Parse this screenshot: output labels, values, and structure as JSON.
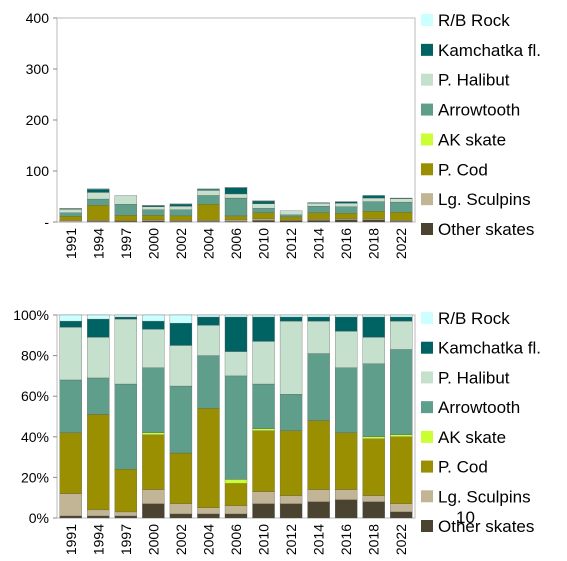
{
  "chart_data": [
    {
      "type": "stacked_bar",
      "categories": [
        "1991",
        "1994",
        "1997",
        "2000",
        "2002",
        "2004",
        "2006",
        "2010",
        "2012",
        "2014",
        "2016",
        "2018",
        "2022"
      ],
      "ylim": [
        0,
        400
      ],
      "yticks": [
        {
          "value": 0,
          "label": "-"
        },
        100,
        200,
        300,
        400
      ],
      "legend": "right",
      "series": [
        {
          "name": "Other skates",
          "color": "#4a4330",
          "values": [
            0,
            1,
            1,
            2,
            1,
            1,
            1,
            3,
            2,
            3,
            4,
            4,
            1
          ]
        },
        {
          "name": "Lg. Sculpins",
          "color": "#c1b595",
          "values": [
            3,
            2,
            1,
            2,
            2,
            2,
            3,
            3,
            1,
            2,
            2,
            2,
            2
          ]
        },
        {
          "name": "P. Cod",
          "color": "#9a8f00",
          "values": [
            8,
            30,
            11,
            9,
            9,
            32,
            7,
            12,
            7,
            13,
            11,
            15,
            16
          ]
        },
        {
          "name": "AK skate",
          "color": "#ccff33",
          "values": [
            0,
            0,
            0,
            0,
            0,
            0,
            1,
            0,
            0,
            0,
            0,
            0,
            0
          ]
        },
        {
          "name": "Arrowtooth",
          "color": "#5f9e8a",
          "values": [
            7,
            12,
            22,
            11,
            12,
            17,
            35,
            9,
            4,
            13,
            13,
            19,
            20
          ]
        },
        {
          "name": "P. Halibut",
          "color": "#c5e0cc",
          "values": [
            7,
            13,
            17,
            6,
            7,
            10,
            8,
            9,
            8,
            6,
            7,
            7,
            7
          ]
        },
        {
          "name": "Kamchatka fl.",
          "color": "#006363",
          "values": [
            1,
            6,
            0,
            2,
            4,
            2,
            12,
            5,
            0,
            1,
            3,
            5,
            1
          ]
        },
        {
          "name": "R/B Rock",
          "color": "#ccffff",
          "values": [
            1,
            1,
            0,
            1,
            1,
            1,
            1,
            1,
            0,
            0,
            0,
            0,
            0
          ]
        }
      ]
    },
    {
      "type": "stacked_bar",
      "categories": [
        "1991",
        "1994",
        "1997",
        "2000",
        "2002",
        "2004",
        "2006",
        "2010",
        "2012",
        "2014",
        "2016",
        "2018",
        "2022"
      ],
      "ylim": [
        0,
        100
      ],
      "yticks": [
        {
          "value": 0,
          "label": "0%"
        },
        {
          "value": 20,
          "label": "20%"
        },
        {
          "value": 40,
          "label": "40%"
        },
        {
          "value": 60,
          "label": "60%"
        },
        {
          "value": 80,
          "label": "80%"
        },
        {
          "value": 100,
          "label": "100%"
        }
      ],
      "legend": "right",
      "annotation": "10",
      "series": [
        {
          "name": "Other skates",
          "color": "#4a4330",
          "values": [
            1,
            1,
            1,
            7,
            2,
            2,
            2,
            7,
            7,
            8,
            9,
            8,
            3
          ]
        },
        {
          "name": "Lg. Sculpins",
          "color": "#c1b595",
          "values": [
            11,
            3,
            2,
            7,
            5,
            3,
            4,
            6,
            4,
            6,
            5,
            3,
            4
          ]
        },
        {
          "name": "P. Cod",
          "color": "#9a8f00",
          "values": [
            30,
            47,
            21,
            27,
            25,
            49,
            11,
            30,
            32,
            34,
            28,
            28,
            33
          ]
        },
        {
          "name": "AK skate",
          "color": "#ccff33",
          "values": [
            0,
            0,
            0,
            1,
            0,
            0,
            2,
            1,
            0,
            0,
            0,
            1,
            1
          ]
        },
        {
          "name": "Arrowtooth",
          "color": "#5f9e8a",
          "values": [
            26,
            18,
            42,
            32,
            33,
            26,
            51,
            22,
            18,
            33,
            32,
            36,
            42
          ]
        },
        {
          "name": "P. Halibut",
          "color": "#c5e0cc",
          "values": [
            26,
            20,
            32,
            19,
            20,
            15,
            12,
            21,
            36,
            16,
            18,
            13,
            14
          ]
        },
        {
          "name": "Kamchatka fl.",
          "color": "#006363",
          "values": [
            3,
            9,
            1,
            4,
            11,
            4,
            17,
            12,
            2,
            2,
            7,
            10,
            2
          ]
        },
        {
          "name": "R/B Rock",
          "color": "#ccffff",
          "values": [
            3,
            2,
            1,
            3,
            4,
            1,
            1,
            1,
            1,
            1,
            1,
            1,
            1
          ]
        }
      ]
    }
  ]
}
